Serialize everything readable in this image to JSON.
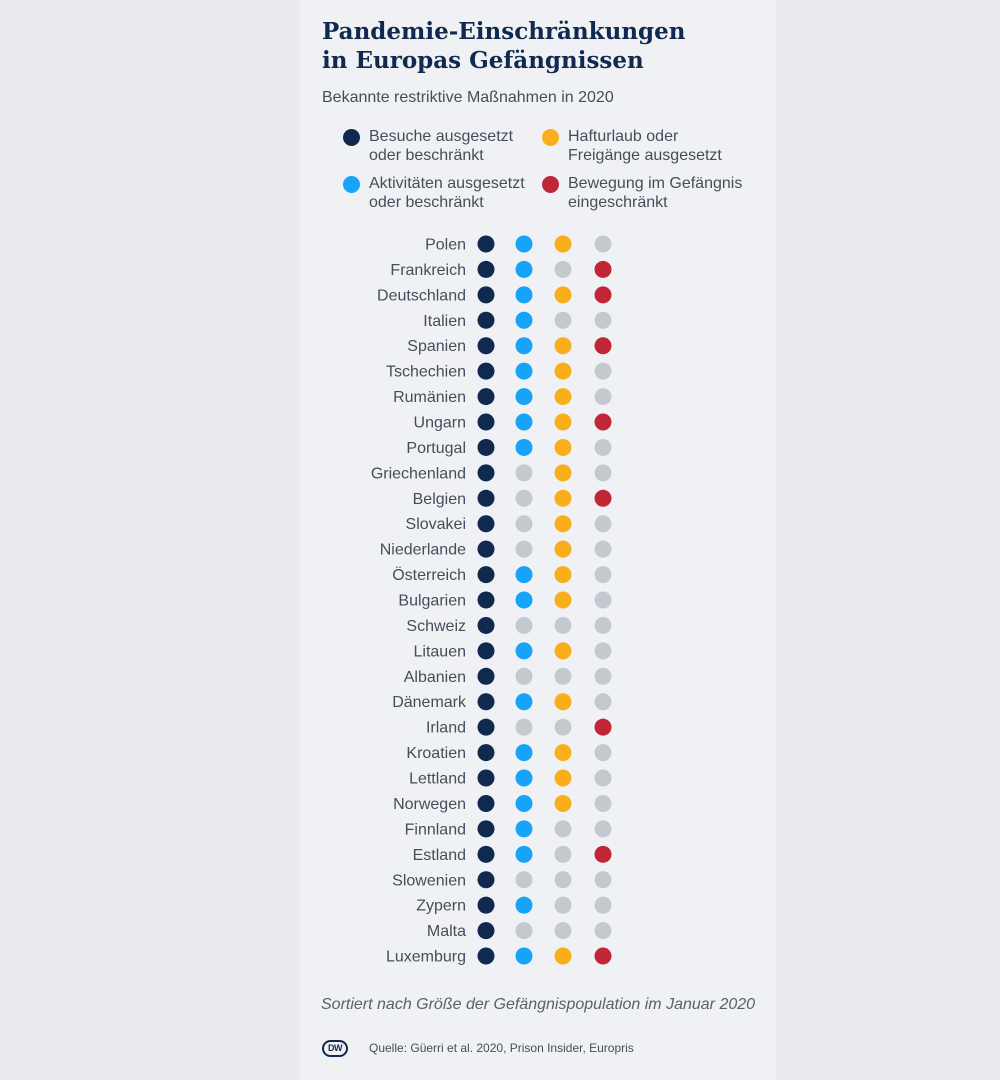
{
  "title_lines": [
    "Pandemie-Einschränkungen",
    "in Europas Gefängnissen"
  ],
  "subtitle": "Bekannte restriktive Maßnahmen in 2020",
  "footnote": "Sortiert nach Größe der Gefängnispopulation im Januar 2020",
  "source": "Quelle: Güerri et al. 2020, Prison Insider, Europris",
  "logo": {
    "text": "DW"
  },
  "colors": {
    "inactive": "#c4c9d0",
    "label": "#464d5a"
  },
  "chart_data": {
    "type": "table",
    "legend": [
      {
        "key": "besuche",
        "lines": [
          "Besuche ausgesetzt",
          "oder beschränkt"
        ],
        "color": "#0f2a4e"
      },
      {
        "key": "aktivitaeten",
        "lines": [
          "Aktivitäten ausgesetzt",
          "oder beschränkt"
        ],
        "color": "#17a3f7"
      },
      {
        "key": "hafturlaub",
        "lines": [
          "Hafturlaub oder",
          "Freigänge ausgesetzt"
        ],
        "color": "#f9ae1c"
      },
      {
        "key": "bewegung",
        "lines": [
          "Bewegung im Gefängnis",
          "eingeschränkt"
        ],
        "color": "#c12636"
      }
    ],
    "columns": [
      "besuche",
      "aktivitaeten",
      "hafturlaub",
      "bewegung"
    ],
    "rows": [
      {
        "country": "Polen",
        "values": [
          1,
          1,
          1,
          0
        ]
      },
      {
        "country": "Frankreich",
        "values": [
          1,
          1,
          0,
          1
        ]
      },
      {
        "country": "Deutschland",
        "values": [
          1,
          1,
          1,
          1
        ]
      },
      {
        "country": "Italien",
        "values": [
          1,
          1,
          0,
          0
        ]
      },
      {
        "country": "Spanien",
        "values": [
          1,
          1,
          1,
          1
        ]
      },
      {
        "country": "Tschechien",
        "values": [
          1,
          1,
          1,
          0
        ]
      },
      {
        "country": "Rumänien",
        "values": [
          1,
          1,
          1,
          0
        ]
      },
      {
        "country": "Ungarn",
        "values": [
          1,
          1,
          1,
          1
        ]
      },
      {
        "country": "Portugal",
        "values": [
          1,
          1,
          1,
          0
        ]
      },
      {
        "country": "Griechenland",
        "values": [
          1,
          0,
          1,
          0
        ]
      },
      {
        "country": "Belgien",
        "values": [
          1,
          0,
          1,
          1
        ]
      },
      {
        "country": "Slovakei",
        "values": [
          1,
          0,
          1,
          0
        ]
      },
      {
        "country": "Niederlande",
        "values": [
          1,
          0,
          1,
          0
        ]
      },
      {
        "country": "Österreich",
        "values": [
          1,
          1,
          1,
          0
        ]
      },
      {
        "country": "Bulgarien",
        "values": [
          1,
          1,
          1,
          0
        ]
      },
      {
        "country": "Schweiz",
        "values": [
          1,
          0,
          0,
          0
        ]
      },
      {
        "country": "Litauen",
        "values": [
          1,
          1,
          1,
          0
        ]
      },
      {
        "country": "Albanien",
        "values": [
          1,
          0,
          0,
          0
        ]
      },
      {
        "country": "Dänemark",
        "values": [
          1,
          1,
          1,
          0
        ]
      },
      {
        "country": "Irland",
        "values": [
          1,
          0,
          0,
          1
        ]
      },
      {
        "country": "Kroatien",
        "values": [
          1,
          1,
          1,
          0
        ]
      },
      {
        "country": "Lettland",
        "values": [
          1,
          1,
          1,
          0
        ]
      },
      {
        "country": "Norwegen",
        "values": [
          1,
          1,
          1,
          0
        ]
      },
      {
        "country": "Finnland",
        "values": [
          1,
          1,
          0,
          0
        ]
      },
      {
        "country": "Estland",
        "values": [
          1,
          1,
          0,
          1
        ]
      },
      {
        "country": "Slowenien",
        "values": [
          1,
          0,
          0,
          0
        ]
      },
      {
        "country": "Zypern",
        "values": [
          1,
          1,
          0,
          0
        ]
      },
      {
        "country": "Malta",
        "values": [
          1,
          0,
          0,
          0
        ]
      },
      {
        "country": "Luxemburg",
        "values": [
          1,
          1,
          1,
          1
        ]
      }
    ]
  }
}
